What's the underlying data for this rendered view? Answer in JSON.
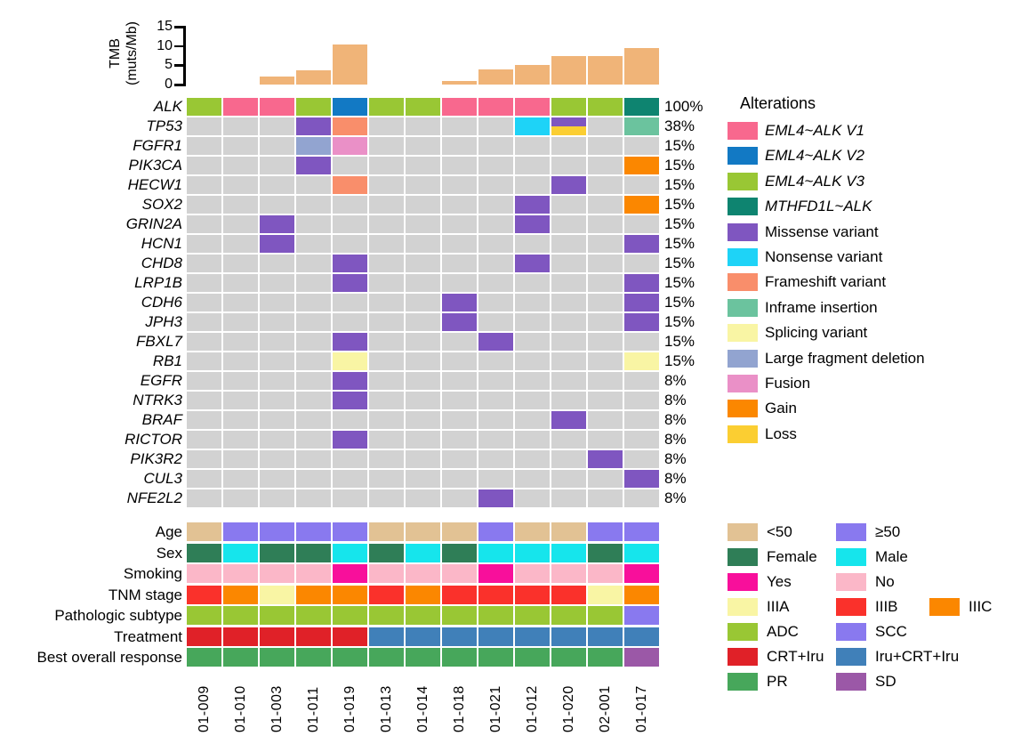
{
  "samples": [
    "01-009",
    "01-010",
    "01-003",
    "01-011",
    "01-019",
    "01-013",
    "01-014",
    "01-018",
    "01-021",
    "01-012",
    "01-020",
    "02-001",
    "01-017"
  ],
  "chart_data": [
    {
      "type": "bar",
      "title": "Tumor mutational burden per sample",
      "ylabel": "TMB (muts/Mb)",
      "ylabel_lines": [
        "TMB",
        "(muts/Mb)"
      ],
      "categories": [
        "01-009",
        "01-010",
        "01-003",
        "01-011",
        "01-019",
        "01-013",
        "01-014",
        "01-018",
        "01-021",
        "01-012",
        "01-020",
        "02-001",
        "01-017"
      ],
      "values": [
        0,
        0,
        2,
        3.8,
        10.3,
        0,
        0,
        1,
        3.9,
        5.1,
        7.3,
        7.3,
        9.4
      ],
      "ylim": [
        0,
        15
      ],
      "yticks": [
        0,
        5,
        10,
        15
      ],
      "bar_color": "#F0B478",
      "grid": false,
      "legend_position": "none"
    },
    {
      "type": "heatmap",
      "subtype": "oncoprint",
      "legend_title": "Alterations",
      "empty_color": "#D2D2D2",
      "legend": [
        {
          "label": "EML4~ALK V1",
          "color": "#F8688E",
          "italic": true
        },
        {
          "label": "EML4~ALK V2",
          "color": "#1279C4",
          "italic": true
        },
        {
          "label": "EML4~ALK V3",
          "color": "#99C734",
          "italic": true
        },
        {
          "label": "MTHFD1L~ALK",
          "color": "#0E8470",
          "italic": true
        },
        {
          "label": "Missense variant",
          "color": "#7F56C0",
          "italic": false
        },
        {
          "label": "Nonsense variant",
          "color": "#1ED3F7",
          "italic": false
        },
        {
          "label": "Frameshift variant",
          "color": "#F98E6B",
          "italic": false
        },
        {
          "label": "Inframe insertion",
          "color": "#6BC39E",
          "italic": false
        },
        {
          "label": "Splicing variant",
          "color": "#F9F5A4",
          "italic": false
        },
        {
          "label": "Large fragment deletion",
          "color": "#92A4D0",
          "italic": false
        },
        {
          "label": "Fusion",
          "color": "#EA90C7",
          "italic": false
        },
        {
          "label": "Gain",
          "color": "#FB8700",
          "italic": false
        },
        {
          "label": "Loss",
          "color": "#FBCE32",
          "italic": false
        }
      ],
      "rows": [
        {
          "name": "ALK",
          "pct": "100%",
          "cells": [
            "EML4~ALK V3",
            "EML4~ALK V1",
            "EML4~ALK V1",
            "EML4~ALK V3",
            "EML4~ALK V2",
            "EML4~ALK V3",
            "EML4~ALK V3",
            "EML4~ALK V1",
            "EML4~ALK V1",
            "EML4~ALK V1",
            "EML4~ALK V3",
            "EML4~ALK V3",
            "MTHFD1L~ALK"
          ]
        },
        {
          "name": "TP53",
          "pct": "38%",
          "cells": [
            null,
            null,
            null,
            "Missense variant",
            "Frameshift variant",
            null,
            null,
            null,
            null,
            "Nonsense variant",
            [
              "Missense variant",
              "Loss"
            ],
            null,
            "Inframe insertion"
          ]
        },
        {
          "name": "FGFR1",
          "pct": "15%",
          "cells": [
            null,
            null,
            null,
            "Large fragment deletion",
            "Fusion",
            null,
            null,
            null,
            null,
            null,
            null,
            null,
            null
          ]
        },
        {
          "name": "PIK3CA",
          "pct": "15%",
          "cells": [
            null,
            null,
            null,
            "Missense variant",
            null,
            null,
            null,
            null,
            null,
            null,
            null,
            null,
            "Gain"
          ]
        },
        {
          "name": "HECW1",
          "pct": "15%",
          "cells": [
            null,
            null,
            null,
            null,
            "Frameshift variant",
            null,
            null,
            null,
            null,
            null,
            "Missense variant",
            null,
            null
          ]
        },
        {
          "name": "SOX2",
          "pct": "15%",
          "cells": [
            null,
            null,
            null,
            null,
            null,
            null,
            null,
            null,
            null,
            "Missense variant",
            null,
            null,
            "Gain"
          ]
        },
        {
          "name": "GRIN2A",
          "pct": "15%",
          "cells": [
            null,
            null,
            "Missense variant",
            null,
            null,
            null,
            null,
            null,
            null,
            "Missense variant",
            null,
            null,
            null
          ]
        },
        {
          "name": "HCN1",
          "pct": "15%",
          "cells": [
            null,
            null,
            "Missense variant",
            null,
            null,
            null,
            null,
            null,
            null,
            null,
            null,
            null,
            "Missense variant"
          ]
        },
        {
          "name": "CHD8",
          "pct": "15%",
          "cells": [
            null,
            null,
            null,
            null,
            "Missense variant",
            null,
            null,
            null,
            null,
            "Missense variant",
            null,
            null,
            null
          ]
        },
        {
          "name": "LRP1B",
          "pct": "15%",
          "cells": [
            null,
            null,
            null,
            null,
            "Missense variant",
            null,
            null,
            null,
            null,
            null,
            null,
            null,
            "Missense variant"
          ]
        },
        {
          "name": "CDH6",
          "pct": "15%",
          "cells": [
            null,
            null,
            null,
            null,
            null,
            null,
            null,
            "Missense variant",
            null,
            null,
            null,
            null,
            "Missense variant"
          ]
        },
        {
          "name": "JPH3",
          "pct": "15%",
          "cells": [
            null,
            null,
            null,
            null,
            null,
            null,
            null,
            "Missense variant",
            null,
            null,
            null,
            null,
            "Missense variant"
          ]
        },
        {
          "name": "FBXL7",
          "pct": "15%",
          "cells": [
            null,
            null,
            null,
            null,
            "Missense variant",
            null,
            null,
            null,
            "Missense variant",
            null,
            null,
            null,
            null
          ]
        },
        {
          "name": "RB1",
          "pct": "15%",
          "cells": [
            null,
            null,
            null,
            null,
            "Splicing variant",
            null,
            null,
            null,
            null,
            null,
            null,
            null,
            "Splicing variant"
          ]
        },
        {
          "name": "EGFR",
          "pct": "8%",
          "cells": [
            null,
            null,
            null,
            null,
            "Missense variant",
            null,
            null,
            null,
            null,
            null,
            null,
            null,
            null
          ]
        },
        {
          "name": "NTRK3",
          "pct": "8%",
          "cells": [
            null,
            null,
            null,
            null,
            "Missense variant",
            null,
            null,
            null,
            null,
            null,
            null,
            null,
            null
          ]
        },
        {
          "name": "BRAF",
          "pct": "8%",
          "cells": [
            null,
            null,
            null,
            null,
            null,
            null,
            null,
            null,
            null,
            null,
            "Missense variant",
            null,
            null
          ]
        },
        {
          "name": "RICTOR",
          "pct": "8%",
          "cells": [
            null,
            null,
            null,
            null,
            "Missense variant",
            null,
            null,
            null,
            null,
            null,
            null,
            null,
            null
          ]
        },
        {
          "name": "PIK3R2",
          "pct": "8%",
          "cells": [
            null,
            null,
            null,
            null,
            null,
            null,
            null,
            null,
            null,
            null,
            null,
            "Missense variant",
            null
          ]
        },
        {
          "name": "CUL3",
          "pct": "8%",
          "cells": [
            null,
            null,
            null,
            null,
            null,
            null,
            null,
            null,
            null,
            null,
            null,
            null,
            "Missense variant"
          ]
        },
        {
          "name": "NFE2L2",
          "pct": "8%",
          "cells": [
            null,
            null,
            null,
            null,
            null,
            null,
            null,
            null,
            "Missense variant",
            null,
            null,
            null,
            null
          ]
        }
      ]
    },
    {
      "type": "heatmap",
      "subtype": "clinical-annotations",
      "rows": [
        {
          "label": "Age",
          "values": [
            "<50",
            "≥50",
            "≥50",
            "≥50",
            "≥50",
            "<50",
            "<50",
            "<50",
            "≥50",
            "<50",
            "<50",
            "≥50",
            "≥50"
          ]
        },
        {
          "label": "Sex",
          "values": [
            "Female",
            "Male",
            "Female",
            "Female",
            "Male",
            "Female",
            "Male",
            "Female",
            "Male",
            "Male",
            "Male",
            "Female",
            "Male"
          ]
        },
        {
          "label": "Smoking",
          "values": [
            "No",
            "No",
            "No",
            "No",
            "Yes",
            "No",
            "No",
            "No",
            "Yes",
            "No",
            "No",
            "No",
            "Yes"
          ]
        },
        {
          "label": "TNM stage",
          "values": [
            "IIIB",
            "IIIC",
            "IIIA",
            "IIIC",
            "IIIC",
            "IIIB",
            "IIIC",
            "IIIB",
            "IIIB",
            "IIIB",
            "IIIB",
            "IIIA",
            "IIIC"
          ]
        },
        {
          "label": "Pathologic subtype",
          "values": [
            "ADC",
            "ADC",
            "ADC",
            "ADC",
            "ADC",
            "ADC",
            "ADC",
            "ADC",
            "ADC",
            "ADC",
            "ADC",
            "ADC",
            "SCC"
          ]
        },
        {
          "label": "Treatment",
          "values": [
            "CRT+Iru",
            "CRT+Iru",
            "CRT+Iru",
            "CRT+Iru",
            "CRT+Iru",
            "Iru+CRT+Iru",
            "Iru+CRT+Iru",
            "Iru+CRT+Iru",
            "Iru+CRT+Iru",
            "Iru+CRT+Iru",
            "Iru+CRT+Iru",
            "Iru+CRT+Iru",
            "Iru+CRT+Iru"
          ]
        },
        {
          "label": "Best overall response",
          "values": [
            "PR",
            "PR",
            "PR",
            "PR",
            "PR",
            "PR",
            "PR",
            "PR",
            "PR",
            "PR",
            "PR",
            "PR",
            "SD"
          ]
        }
      ],
      "palette": {
        "<50": "#E2C294",
        "≥50": "#8979EF",
        "Female": "#2F7E57",
        "Male": "#16E5EC",
        "Yes": "#F80F9B",
        "No": "#FBB7C8",
        "IIIA": "#F9F5A4",
        "IIIB": "#FA312B",
        "IIIC": "#FB8700",
        "ADC": "#99C734",
        "SCC": "#8979EF",
        "CRT+Iru": "#E02128",
        "Iru+CRT+Iru": "#4080B9",
        "PR": "#47A75B",
        "SD": "#9B58A7"
      },
      "legend_rows": [
        [
          "<50",
          "≥50"
        ],
        [
          "Female",
          "Male"
        ],
        [
          "Yes",
          "No"
        ],
        [
          "IIIA",
          "IIIB",
          "IIIC"
        ],
        [
          "ADC",
          "SCC"
        ],
        [
          "CRT+Iru",
          "Iru+CRT+Iru"
        ],
        [
          "PR",
          "SD"
        ]
      ]
    }
  ]
}
